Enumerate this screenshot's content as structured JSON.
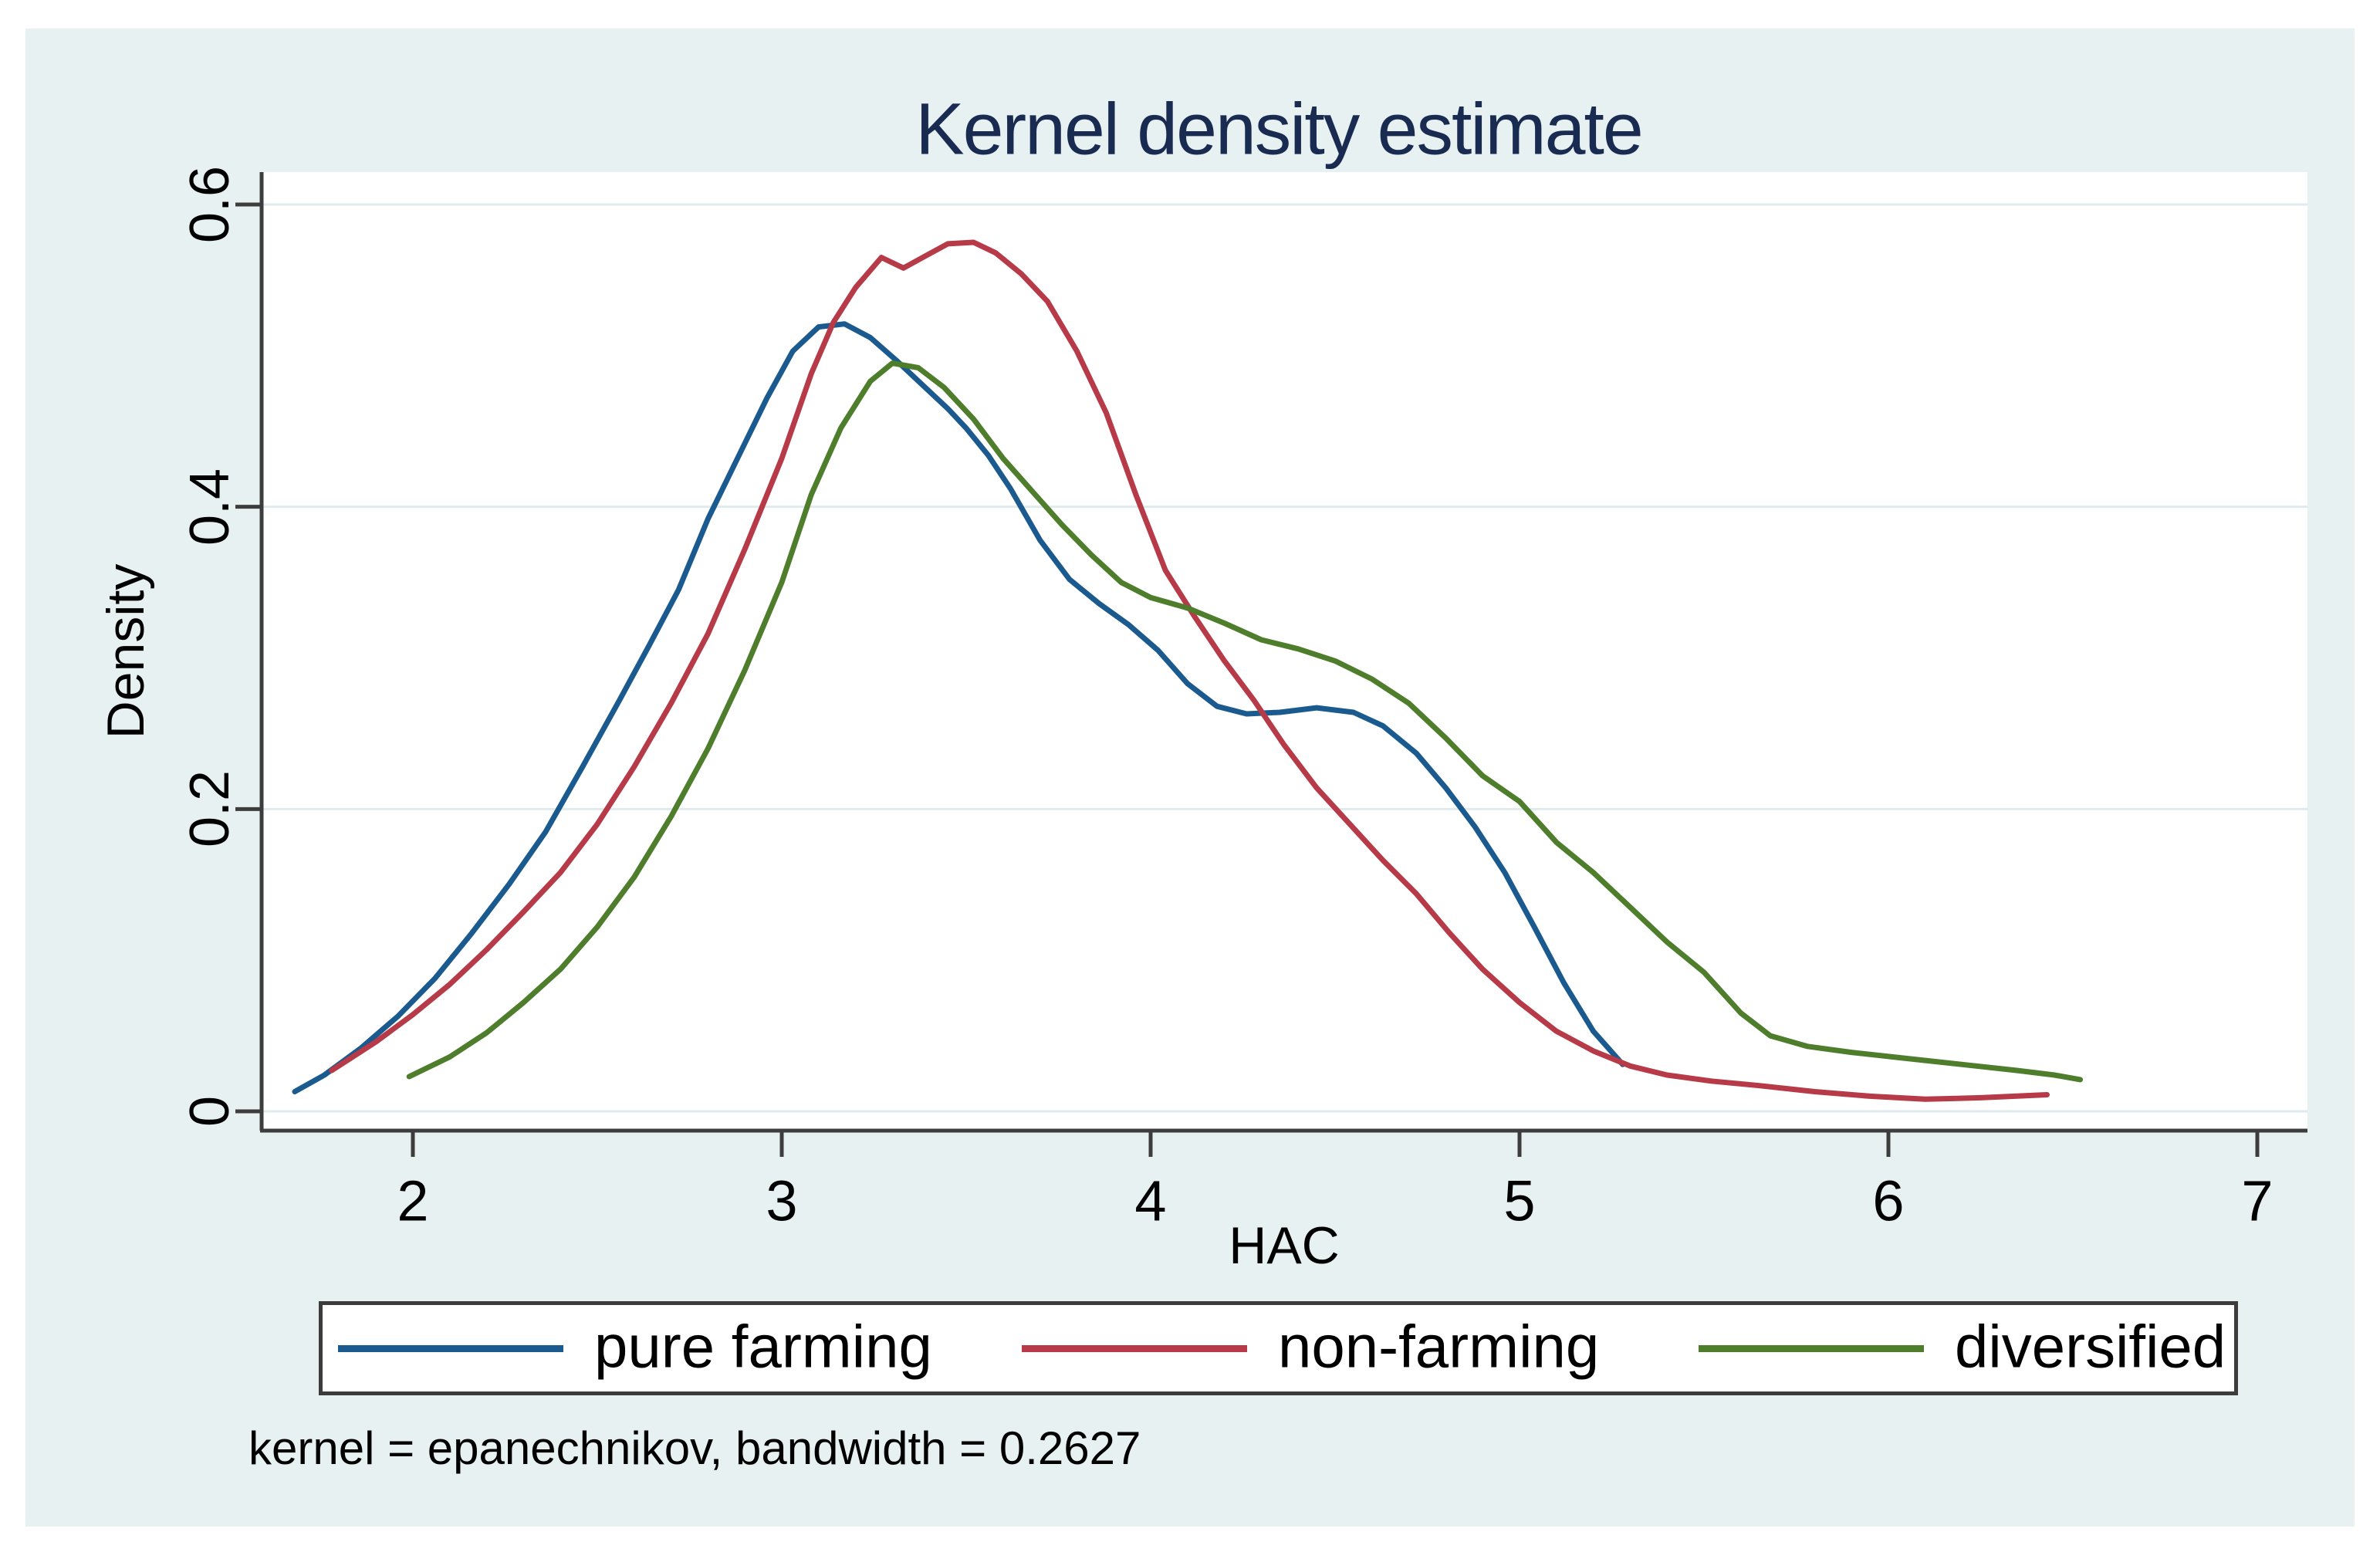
{
  "note": "kernel = epanechnikov, bandwidth = 0.2627",
  "colors": {
    "figure_background": "#e7f1f2",
    "plot_background": "#ffffff",
    "gridline": "#dfebec",
    "axis": "#3d3d3d",
    "title_text": "#1a2b52",
    "pure_farming": "#1b5a8e",
    "non_farming": "#b63a47",
    "diversified": "#4e7d2c"
  },
  "chart_data": {
    "type": "line",
    "title": "Kernel density estimate",
    "xlabel": "HAC",
    "ylabel": "Density",
    "x_ticks": [
      2,
      3,
      4,
      5,
      6,
      7
    ],
    "y_ticks": [
      0,
      0.2,
      0.4,
      0.6
    ],
    "y_tick_labels": [
      "0",
      "0.2",
      "0.4",
      "0.6"
    ],
    "xlim": [
      1.59,
      7.13
    ],
    "ylim": [
      -0.013,
      0.62
    ],
    "grid": "horizontal",
    "legend_position": "bottom",
    "note": "kernel = epanechnikov, bandwidth = 0.2627",
    "series": [
      {
        "name": "pure farming",
        "color": "#1b5a8e",
        "points": [
          [
            1.68,
            0.013
          ],
          [
            1.76,
            0.024
          ],
          [
            1.86,
            0.042
          ],
          [
            1.96,
            0.063
          ],
          [
            2.06,
            0.088
          ],
          [
            2.16,
            0.118
          ],
          [
            2.26,
            0.15
          ],
          [
            2.36,
            0.185
          ],
          [
            2.46,
            0.228
          ],
          [
            2.56,
            0.272
          ],
          [
            2.64,
            0.308
          ],
          [
            2.72,
            0.345
          ],
          [
            2.8,
            0.392
          ],
          [
            2.88,
            0.432
          ],
          [
            2.96,
            0.472
          ],
          [
            3.03,
            0.503
          ],
          [
            3.1,
            0.519
          ],
          [
            3.17,
            0.521
          ],
          [
            3.24,
            0.512
          ],
          [
            3.31,
            0.497
          ],
          [
            3.38,
            0.481
          ],
          [
            3.45,
            0.465
          ],
          [
            3.5,
            0.452
          ],
          [
            3.56,
            0.434
          ],
          [
            3.62,
            0.412
          ],
          [
            3.7,
            0.378
          ],
          [
            3.78,
            0.352
          ],
          [
            3.86,
            0.336
          ],
          [
            3.94,
            0.322
          ],
          [
            4.02,
            0.305
          ],
          [
            4.1,
            0.283
          ],
          [
            4.18,
            0.268
          ],
          [
            4.26,
            0.263
          ],
          [
            4.35,
            0.264
          ],
          [
            4.45,
            0.267
          ],
          [
            4.55,
            0.264
          ],
          [
            4.63,
            0.255
          ],
          [
            4.72,
            0.237
          ],
          [
            4.8,
            0.214
          ],
          [
            4.88,
            0.188
          ],
          [
            4.96,
            0.158
          ],
          [
            5.04,
            0.122
          ],
          [
            5.12,
            0.085
          ],
          [
            5.2,
            0.053
          ],
          [
            5.28,
            0.031
          ]
        ]
      },
      {
        "name": "non-farming",
        "color": "#b63a47",
        "points": [
          [
            1.78,
            0.027
          ],
          [
            1.9,
            0.046
          ],
          [
            2.0,
            0.064
          ],
          [
            2.1,
            0.084
          ],
          [
            2.2,
            0.107
          ],
          [
            2.3,
            0.132
          ],
          [
            2.4,
            0.158
          ],
          [
            2.5,
            0.19
          ],
          [
            2.6,
            0.228
          ],
          [
            2.7,
            0.27
          ],
          [
            2.8,
            0.316
          ],
          [
            2.9,
            0.372
          ],
          [
            3.0,
            0.432
          ],
          [
            3.08,
            0.488
          ],
          [
            3.14,
            0.522
          ],
          [
            3.2,
            0.545
          ],
          [
            3.27,
            0.565
          ],
          [
            3.33,
            0.558
          ],
          [
            3.39,
            0.566
          ],
          [
            3.45,
            0.574
          ],
          [
            3.52,
            0.575
          ],
          [
            3.58,
            0.568
          ],
          [
            3.65,
            0.554
          ],
          [
            3.72,
            0.536
          ],
          [
            3.8,
            0.503
          ],
          [
            3.88,
            0.462
          ],
          [
            3.96,
            0.408
          ],
          [
            4.04,
            0.358
          ],
          [
            4.12,
            0.327
          ],
          [
            4.2,
            0.298
          ],
          [
            4.28,
            0.272
          ],
          [
            4.36,
            0.243
          ],
          [
            4.45,
            0.214
          ],
          [
            4.54,
            0.19
          ],
          [
            4.63,
            0.166
          ],
          [
            4.72,
            0.144
          ],
          [
            4.81,
            0.118
          ],
          [
            4.9,
            0.094
          ],
          [
            5.0,
            0.072
          ],
          [
            5.1,
            0.053
          ],
          [
            5.2,
            0.04
          ],
          [
            5.3,
            0.03
          ],
          [
            5.4,
            0.024
          ],
          [
            5.52,
            0.02
          ],
          [
            5.65,
            0.017
          ],
          [
            5.8,
            0.013
          ],
          [
            5.95,
            0.01
          ],
          [
            6.1,
            0.008
          ],
          [
            6.25,
            0.009
          ],
          [
            6.43,
            0.011
          ]
        ]
      },
      {
        "name": "diversified",
        "color": "#4e7d2c",
        "points": [
          [
            1.99,
            0.023
          ],
          [
            2.1,
            0.036
          ],
          [
            2.2,
            0.052
          ],
          [
            2.3,
            0.072
          ],
          [
            2.4,
            0.094
          ],
          [
            2.5,
            0.122
          ],
          [
            2.6,
            0.155
          ],
          [
            2.7,
            0.195
          ],
          [
            2.8,
            0.24
          ],
          [
            2.9,
            0.292
          ],
          [
            3.0,
            0.35
          ],
          [
            3.08,
            0.408
          ],
          [
            3.16,
            0.452
          ],
          [
            3.24,
            0.483
          ],
          [
            3.3,
            0.495
          ],
          [
            3.37,
            0.492
          ],
          [
            3.44,
            0.479
          ],
          [
            3.52,
            0.458
          ],
          [
            3.6,
            0.432
          ],
          [
            3.68,
            0.41
          ],
          [
            3.76,
            0.388
          ],
          [
            3.84,
            0.368
          ],
          [
            3.92,
            0.35
          ],
          [
            4.0,
            0.34
          ],
          [
            4.1,
            0.333
          ],
          [
            4.2,
            0.323
          ],
          [
            4.3,
            0.312
          ],
          [
            4.4,
            0.306
          ],
          [
            4.5,
            0.298
          ],
          [
            4.6,
            0.286
          ],
          [
            4.7,
            0.27
          ],
          [
            4.8,
            0.247
          ],
          [
            4.9,
            0.222
          ],
          [
            5.0,
            0.205
          ],
          [
            5.1,
            0.178
          ],
          [
            5.2,
            0.158
          ],
          [
            5.3,
            0.135
          ],
          [
            5.4,
            0.112
          ],
          [
            5.5,
            0.092
          ],
          [
            5.6,
            0.065
          ],
          [
            5.68,
            0.05
          ],
          [
            5.78,
            0.043
          ],
          [
            5.9,
            0.039
          ],
          [
            6.05,
            0.035
          ],
          [
            6.2,
            0.031
          ],
          [
            6.35,
            0.027
          ],
          [
            6.45,
            0.024
          ],
          [
            6.52,
            0.021
          ]
        ]
      }
    ]
  }
}
